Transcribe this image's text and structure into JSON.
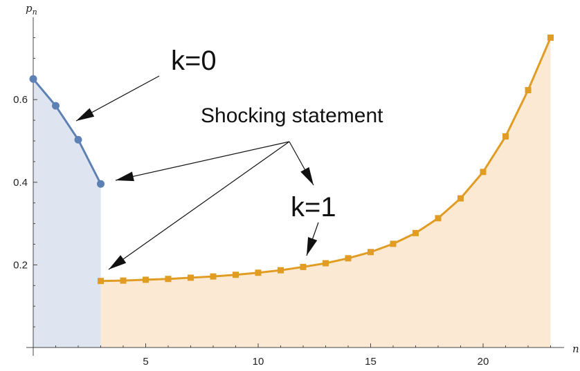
{
  "chart_data": {
    "type": "line",
    "title": "",
    "xlabel_var": "n",
    "ylabel_var": "p",
    "ylabel_sub": "n",
    "xlim": [
      0,
      23
    ],
    "ylim": [
      0,
      0.76
    ],
    "xticks": [
      5,
      10,
      15,
      20
    ],
    "yticks": [
      0.2,
      0.4,
      0.6
    ],
    "xtick_labels": [
      "5",
      "10",
      "15",
      "20"
    ],
    "ytick_labels": [
      "0.2",
      "0.4",
      "0.6"
    ],
    "grid": false,
    "series": [
      {
        "key": "k0",
        "color": "#5e81b5",
        "fill": "#dfe5f0",
        "marker": "circle",
        "x": [
          0,
          1,
          2,
          3
        ],
        "y": [
          0.65,
          0.585,
          0.503,
          0.396
        ]
      },
      {
        "key": "k1",
        "color": "#e19c24",
        "fill": "#fbe9d3",
        "marker": "square",
        "x": [
          3,
          4,
          5,
          6,
          7,
          8,
          9,
          10,
          11,
          12,
          13,
          14,
          15,
          16,
          17,
          18,
          19,
          20,
          21,
          22,
          23
        ],
        "y": [
          0.161,
          0.162,
          0.164,
          0.166,
          0.169,
          0.172,
          0.176,
          0.181,
          0.187,
          0.195,
          0.204,
          0.216,
          0.231,
          0.251,
          0.277,
          0.313,
          0.361,
          0.425,
          0.511,
          0.623,
          0.75
        ]
      }
    ],
    "annotations": {
      "k0_label": "k=0",
      "k1_label": "k=1",
      "statement_label": "Shocking statement"
    }
  }
}
